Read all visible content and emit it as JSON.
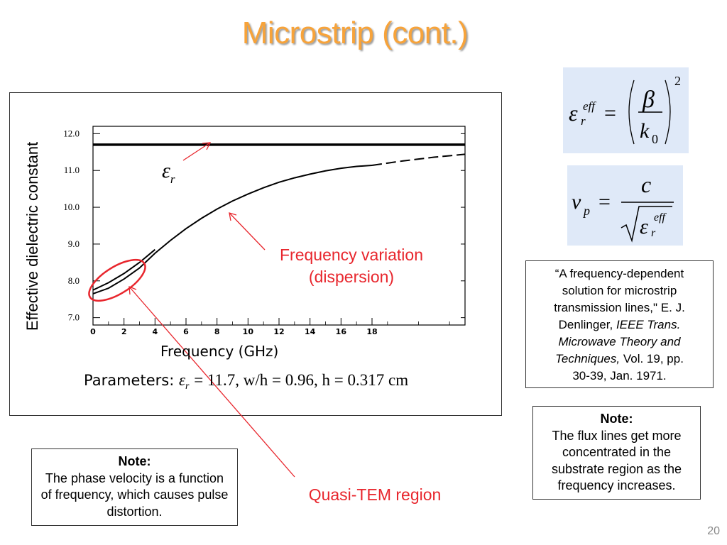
{
  "slide": {
    "title": "Microstrip (cont.)",
    "page_number": "20"
  },
  "figure": {
    "ylabel": "Effective dielectric constant",
    "xlabel": "Frequency (GHz)",
    "params_prefix": "Parameters:",
    "params_math": "= 11.7, w/h = 0.96, h = 0.317 cm",
    "er_label": "ε",
    "er_sub": "r"
  },
  "equations": {
    "eq1_lhs": "ε",
    "eq1_sup": "eff",
    "eq1_sub": "r",
    "eq1_num": "β",
    "eq1_den": "k",
    "eq1_den_sub": "0",
    "eq1_power": "2",
    "eq2_lhs": "v",
    "eq2_lhs_sub": "p",
    "eq2_num": "c",
    "eq2_den": "ε",
    "eq2_den_sup": "eff",
    "eq2_den_sub": "r"
  },
  "annotations": {
    "dispersion_line1": "Frequency variation",
    "dispersion_line2": "(dispersion)",
    "quasi_tem": "Quasi-TEM region"
  },
  "reference": {
    "line1": "“A frequency-dependent",
    "line2": "solution for microstrip",
    "line3": "transmission lines,\" E. J.",
    "line4_a": "Denlinger, ",
    "line4_b": "IEEE Trans.",
    "line5": "Microwave Theory and",
    "line6_a": "Techniques,",
    "line6_b": " Vol. 19, pp.",
    "line7": "30-39, Jan. 1971."
  },
  "notes": {
    "flux_title": "Note:",
    "flux_text": "The flux lines get more concentrated in the substrate region as the frequency increases.",
    "phase_title": "Note:",
    "phase_text": "The phase velocity is a function of frequency, which causes pulse distortion."
  },
  "colors": {
    "title": "#f7a33a",
    "accent_red": "#e8262d",
    "eq_bg": "#dfe9f8"
  },
  "chart_data": {
    "type": "line",
    "xlabel": "Frequency (GHz)",
    "ylabel": "Effective dielectric constant",
    "xlim": [
      0,
      24
    ],
    "ylim": [
      6.8,
      12.2
    ],
    "x_ticks": [
      "0",
      "2",
      "4",
      "6",
      "8",
      "10",
      "12",
      "14",
      "16",
      "18"
    ],
    "y_ticks": [
      "12.0",
      "11.0",
      "10.0",
      "9.0",
      "8.0",
      "7.0"
    ],
    "series": [
      {
        "name": "εr",
        "style": "solid",
        "x": [
          0,
          24
        ],
        "y": [
          11.7,
          11.7
        ]
      },
      {
        "name": "",
        "style": "solid",
        "x": [
          0,
          1,
          2,
          3,
          4,
          5,
          6,
          7,
          8,
          9,
          10,
          11,
          12,
          13,
          14,
          15,
          16,
          17,
          18
        ],
        "y": [
          7.65,
          7.8,
          8.05,
          8.35,
          8.75,
          9.1,
          9.42,
          9.7,
          9.95,
          10.17,
          10.36,
          10.53,
          10.68,
          10.8,
          10.9,
          10.99,
          11.06,
          11.11,
          11.14
        ]
      },
      {
        "name": "",
        "style": "dashed",
        "x": [
          18,
          19,
          20,
          21,
          22,
          23,
          24
        ],
        "y": [
          11.14,
          11.2,
          11.26,
          11.31,
          11.36,
          11.4,
          11.44
        ]
      },
      {
        "name": "",
        "style": "solid",
        "x": [
          0,
          1,
          2,
          3,
          4
        ],
        "y": [
          7.75,
          7.95,
          8.2,
          8.5,
          8.85
        ]
      }
    ]
  }
}
